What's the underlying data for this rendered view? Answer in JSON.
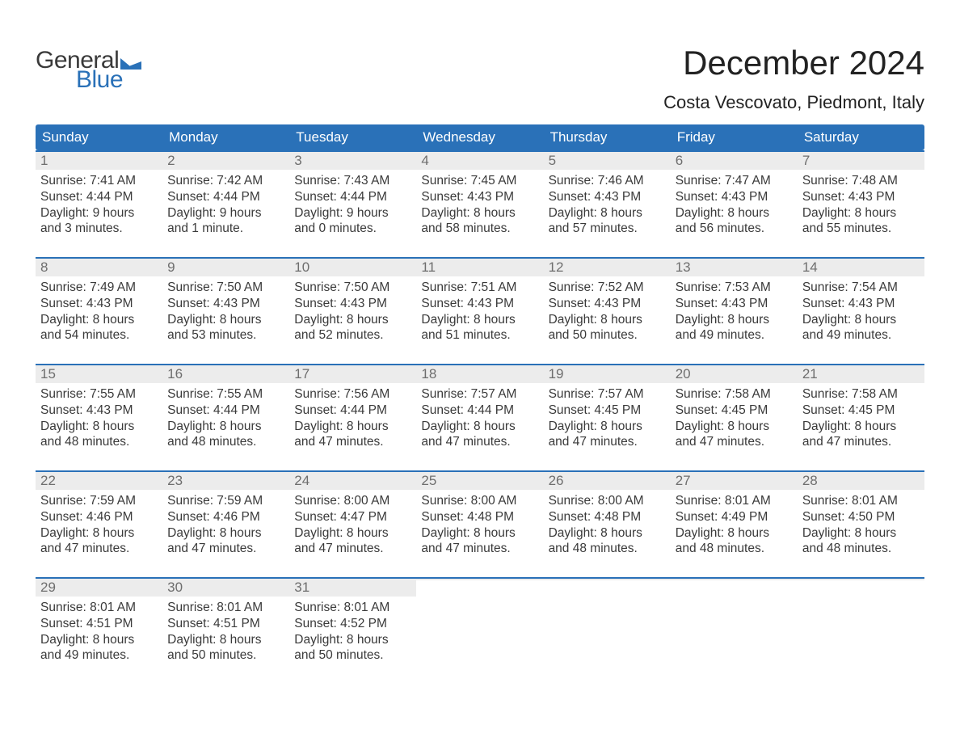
{
  "logo": {
    "text_general": "General",
    "text_blue": "Blue",
    "flag_color": "#2a71b8"
  },
  "title": "December 2024",
  "location": "Costa Vescovato, Piedmont, Italy",
  "colors": {
    "header_bg": "#2a71b8",
    "accent_border": "#2a71b8",
    "daynum_bg": "#ececec",
    "daynum_color": "#6e6e6e",
    "text_color": "#3a3a3a",
    "background": "#ffffff"
  },
  "typography": {
    "title_fontsize": 42,
    "location_fontsize": 22,
    "weekday_fontsize": 17,
    "body_fontsize": 15.5,
    "font_family": "Arial"
  },
  "layout": {
    "columns": 7,
    "rows": 5,
    "cell_min_height": 116
  },
  "weekdays": [
    "Sunday",
    "Monday",
    "Tuesday",
    "Wednesday",
    "Thursday",
    "Friday",
    "Saturday"
  ],
  "weeks": [
    [
      {
        "day": "1",
        "sunrise": "Sunrise: 7:41 AM",
        "sunset": "Sunset: 4:44 PM",
        "daylight1": "Daylight: 9 hours",
        "daylight2": "and 3 minutes."
      },
      {
        "day": "2",
        "sunrise": "Sunrise: 7:42 AM",
        "sunset": "Sunset: 4:44 PM",
        "daylight1": "Daylight: 9 hours",
        "daylight2": "and 1 minute."
      },
      {
        "day": "3",
        "sunrise": "Sunrise: 7:43 AM",
        "sunset": "Sunset: 4:44 PM",
        "daylight1": "Daylight: 9 hours",
        "daylight2": "and 0 minutes."
      },
      {
        "day": "4",
        "sunrise": "Sunrise: 7:45 AM",
        "sunset": "Sunset: 4:43 PM",
        "daylight1": "Daylight: 8 hours",
        "daylight2": "and 58 minutes."
      },
      {
        "day": "5",
        "sunrise": "Sunrise: 7:46 AM",
        "sunset": "Sunset: 4:43 PM",
        "daylight1": "Daylight: 8 hours",
        "daylight2": "and 57 minutes."
      },
      {
        "day": "6",
        "sunrise": "Sunrise: 7:47 AM",
        "sunset": "Sunset: 4:43 PM",
        "daylight1": "Daylight: 8 hours",
        "daylight2": "and 56 minutes."
      },
      {
        "day": "7",
        "sunrise": "Sunrise: 7:48 AM",
        "sunset": "Sunset: 4:43 PM",
        "daylight1": "Daylight: 8 hours",
        "daylight2": "and 55 minutes."
      }
    ],
    [
      {
        "day": "8",
        "sunrise": "Sunrise: 7:49 AM",
        "sunset": "Sunset: 4:43 PM",
        "daylight1": "Daylight: 8 hours",
        "daylight2": "and 54 minutes."
      },
      {
        "day": "9",
        "sunrise": "Sunrise: 7:50 AM",
        "sunset": "Sunset: 4:43 PM",
        "daylight1": "Daylight: 8 hours",
        "daylight2": "and 53 minutes."
      },
      {
        "day": "10",
        "sunrise": "Sunrise: 7:50 AM",
        "sunset": "Sunset: 4:43 PM",
        "daylight1": "Daylight: 8 hours",
        "daylight2": "and 52 minutes."
      },
      {
        "day": "11",
        "sunrise": "Sunrise: 7:51 AM",
        "sunset": "Sunset: 4:43 PM",
        "daylight1": "Daylight: 8 hours",
        "daylight2": "and 51 minutes."
      },
      {
        "day": "12",
        "sunrise": "Sunrise: 7:52 AM",
        "sunset": "Sunset: 4:43 PM",
        "daylight1": "Daylight: 8 hours",
        "daylight2": "and 50 minutes."
      },
      {
        "day": "13",
        "sunrise": "Sunrise: 7:53 AM",
        "sunset": "Sunset: 4:43 PM",
        "daylight1": "Daylight: 8 hours",
        "daylight2": "and 49 minutes."
      },
      {
        "day": "14",
        "sunrise": "Sunrise: 7:54 AM",
        "sunset": "Sunset: 4:43 PM",
        "daylight1": "Daylight: 8 hours",
        "daylight2": "and 49 minutes."
      }
    ],
    [
      {
        "day": "15",
        "sunrise": "Sunrise: 7:55 AM",
        "sunset": "Sunset: 4:43 PM",
        "daylight1": "Daylight: 8 hours",
        "daylight2": "and 48 minutes."
      },
      {
        "day": "16",
        "sunrise": "Sunrise: 7:55 AM",
        "sunset": "Sunset: 4:44 PM",
        "daylight1": "Daylight: 8 hours",
        "daylight2": "and 48 minutes."
      },
      {
        "day": "17",
        "sunrise": "Sunrise: 7:56 AM",
        "sunset": "Sunset: 4:44 PM",
        "daylight1": "Daylight: 8 hours",
        "daylight2": "and 47 minutes."
      },
      {
        "day": "18",
        "sunrise": "Sunrise: 7:57 AM",
        "sunset": "Sunset: 4:44 PM",
        "daylight1": "Daylight: 8 hours",
        "daylight2": "and 47 minutes."
      },
      {
        "day": "19",
        "sunrise": "Sunrise: 7:57 AM",
        "sunset": "Sunset: 4:45 PM",
        "daylight1": "Daylight: 8 hours",
        "daylight2": "and 47 minutes."
      },
      {
        "day": "20",
        "sunrise": "Sunrise: 7:58 AM",
        "sunset": "Sunset: 4:45 PM",
        "daylight1": "Daylight: 8 hours",
        "daylight2": "and 47 minutes."
      },
      {
        "day": "21",
        "sunrise": "Sunrise: 7:58 AM",
        "sunset": "Sunset: 4:45 PM",
        "daylight1": "Daylight: 8 hours",
        "daylight2": "and 47 minutes."
      }
    ],
    [
      {
        "day": "22",
        "sunrise": "Sunrise: 7:59 AM",
        "sunset": "Sunset: 4:46 PM",
        "daylight1": "Daylight: 8 hours",
        "daylight2": "and 47 minutes."
      },
      {
        "day": "23",
        "sunrise": "Sunrise: 7:59 AM",
        "sunset": "Sunset: 4:46 PM",
        "daylight1": "Daylight: 8 hours",
        "daylight2": "and 47 minutes."
      },
      {
        "day": "24",
        "sunrise": "Sunrise: 8:00 AM",
        "sunset": "Sunset: 4:47 PM",
        "daylight1": "Daylight: 8 hours",
        "daylight2": "and 47 minutes."
      },
      {
        "day": "25",
        "sunrise": "Sunrise: 8:00 AM",
        "sunset": "Sunset: 4:48 PM",
        "daylight1": "Daylight: 8 hours",
        "daylight2": "and 47 minutes."
      },
      {
        "day": "26",
        "sunrise": "Sunrise: 8:00 AM",
        "sunset": "Sunset: 4:48 PM",
        "daylight1": "Daylight: 8 hours",
        "daylight2": "and 48 minutes."
      },
      {
        "day": "27",
        "sunrise": "Sunrise: 8:01 AM",
        "sunset": "Sunset: 4:49 PM",
        "daylight1": "Daylight: 8 hours",
        "daylight2": "and 48 minutes."
      },
      {
        "day": "28",
        "sunrise": "Sunrise: 8:01 AM",
        "sunset": "Sunset: 4:50 PM",
        "daylight1": "Daylight: 8 hours",
        "daylight2": "and 48 minutes."
      }
    ],
    [
      {
        "day": "29",
        "sunrise": "Sunrise: 8:01 AM",
        "sunset": "Sunset: 4:51 PM",
        "daylight1": "Daylight: 8 hours",
        "daylight2": "and 49 minutes."
      },
      {
        "day": "30",
        "sunrise": "Sunrise: 8:01 AM",
        "sunset": "Sunset: 4:51 PM",
        "daylight1": "Daylight: 8 hours",
        "daylight2": "and 50 minutes."
      },
      {
        "day": "31",
        "sunrise": "Sunrise: 8:01 AM",
        "sunset": "Sunset: 4:52 PM",
        "daylight1": "Daylight: 8 hours",
        "daylight2": "and 50 minutes."
      },
      null,
      null,
      null,
      null
    ]
  ]
}
